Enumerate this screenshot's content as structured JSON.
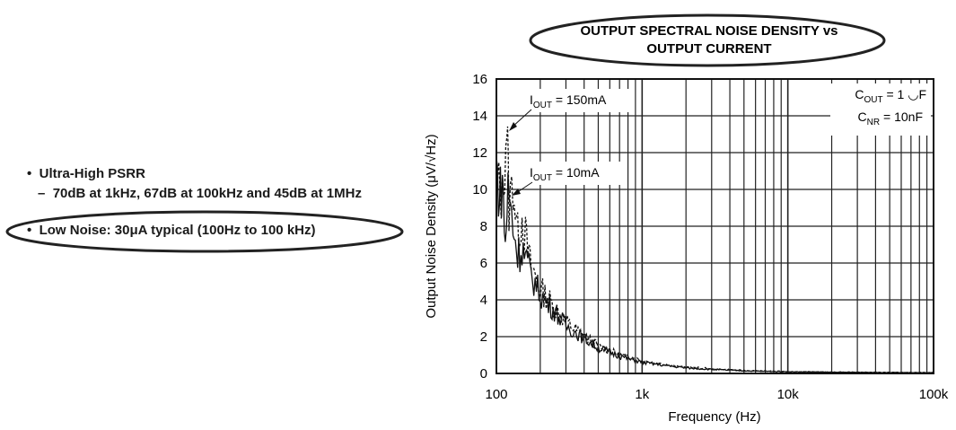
{
  "bullets": {
    "item1": "Ultra-High PSRR",
    "item1_sub": "70dB at 1kHz, 67dB at 100kHz and 45dB at 1MHz",
    "item2": "Low Noise: 30μA typical (100Hz to 100 kHz)",
    "bullet_glyph": "•",
    "dash_glyph": "–"
  },
  "chart_data": {
    "type": "line",
    "title_line1": "OUTPUT SPECTRAL NOISE DENSITY vs",
    "title_line2": "OUTPUT CURRENT",
    "xlabel": "Frequency (Hz)",
    "ylabel": "Output Noise Density (μV/√Hz)",
    "xscale": "log",
    "xlim": [
      100,
      100000
    ],
    "ylim": [
      0,
      16
    ],
    "xticks": [
      "100",
      "1k",
      "10k",
      "100k"
    ],
    "yticks": [
      "0",
      "2",
      "4",
      "6",
      "8",
      "10",
      "12",
      "14",
      "16"
    ],
    "grid": true,
    "conditions": {
      "cout_label": "C",
      "cout_sub": "OUT",
      "cout_value": " = 1 ◡F",
      "cnr_label": "C",
      "cnr_sub": "NR",
      "cnr_value": " = 10nF"
    },
    "series": [
      {
        "name_main": "I",
        "name_sub": "OUT",
        "name_value": " = 150mA",
        "style": "dashed",
        "x": [
          100,
          110,
          118,
          122,
          130,
          140,
          150,
          170,
          200,
          250,
          300,
          400,
          500,
          700,
          1000,
          1500,
          2000,
          3000,
          5000,
          10000,
          20000,
          50000,
          100000
        ],
        "y": [
          10.5,
          9.5,
          13.8,
          9.0,
          10.5,
          7.5,
          8.5,
          6.0,
          4.6,
          3.6,
          2.8,
          2.0,
          1.5,
          1.0,
          0.7,
          0.45,
          0.35,
          0.25,
          0.16,
          0.1,
          0.08,
          0.06,
          0.05
        ]
      },
      {
        "name_main": "I",
        "name_sub": "OUT",
        "name_value": " = 10mA",
        "style": "solid",
        "x": [
          100,
          105,
          110,
          115,
          120,
          130,
          140,
          150,
          170,
          200,
          250,
          300,
          400,
          500,
          700,
          1000,
          1500,
          2000,
          3000,
          5000,
          10000,
          20000,
          50000,
          100000
        ],
        "y": [
          11.3,
          9.5,
          10.5,
          7.0,
          10.0,
          8.0,
          6.5,
          6.8,
          5.5,
          4.3,
          3.4,
          2.6,
          1.9,
          1.4,
          0.95,
          0.6,
          0.42,
          0.3,
          0.22,
          0.14,
          0.09,
          0.07,
          0.05,
          0.04
        ]
      }
    ]
  }
}
